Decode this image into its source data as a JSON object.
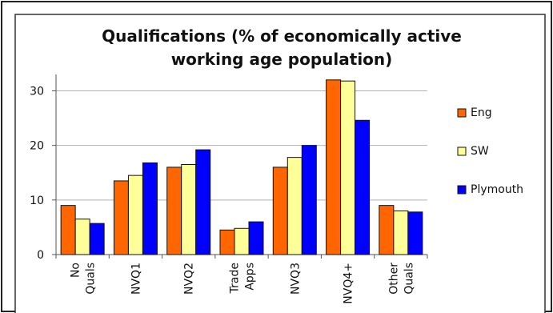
{
  "chart_data": {
    "type": "bar",
    "title": "Qualifications (% of economically active working age population)",
    "title_lines": [
      "Qualifications (% of economically active",
      "working age population)"
    ],
    "categories": [
      [
        "No",
        "Quals"
      ],
      [
        "NVQ1"
      ],
      [
        "NVQ2"
      ],
      [
        "Trade",
        "Apps"
      ],
      [
        "NVQ3"
      ],
      [
        "NVQ4+"
      ],
      [
        "Other",
        "Quals"
      ]
    ],
    "series": [
      {
        "name": "Eng",
        "color": "#ff6600",
        "values": [
          9,
          13.5,
          16,
          4.5,
          16,
          32,
          9
        ]
      },
      {
        "name": "SW",
        "color": "#ffff99",
        "values": [
          6.5,
          14.5,
          16.5,
          4.8,
          17.8,
          31.8,
          8
        ]
      },
      {
        "name": "Plymouth",
        "color": "#0000ff",
        "values": [
          5.7,
          16.8,
          19.2,
          6,
          20,
          24.6,
          7.8
        ]
      }
    ],
    "ylim": [
      0,
      33
    ],
    "yticks": [
      0,
      10,
      20,
      30
    ],
    "xlabel": "",
    "ylabel": "",
    "grid": true,
    "legend": "right"
  }
}
